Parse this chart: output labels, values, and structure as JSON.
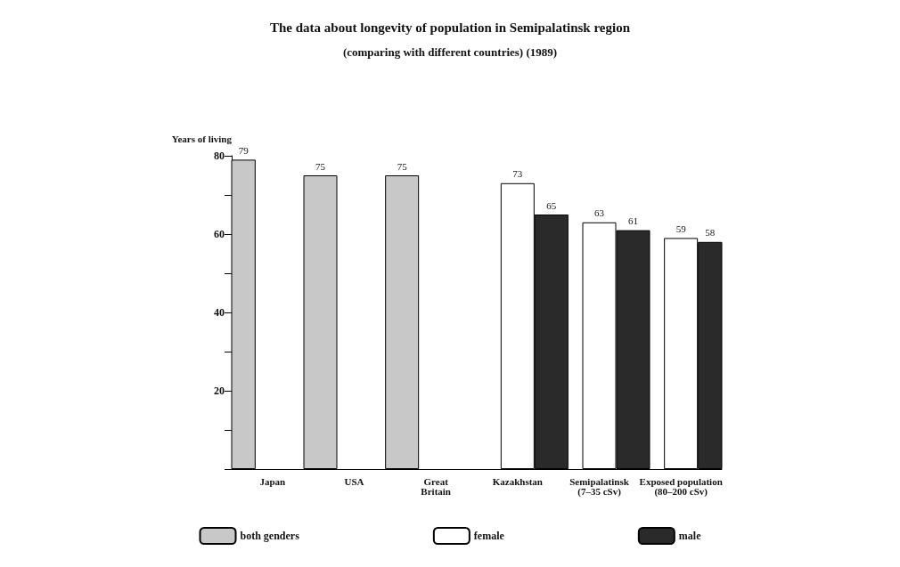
{
  "chart_data": {
    "type": "bar",
    "title": "The data about longevity of population in Semipalatinsk region",
    "subtitle": "(comparing with different countries) (1989)",
    "ylabel": "Years of living",
    "categories": [
      "Japan",
      "USA",
      "Great\nBritain",
      "Kazakhstan",
      "Semipalatinsk\n(7–35 cSv)",
      "Exposed population\n(80–200 cSv)"
    ],
    "series": [
      {
        "name": "both genders",
        "color": "#c8c8c8",
        "values": [
          79,
          75,
          75,
          null,
          null,
          null
        ]
      },
      {
        "name": "female",
        "color": "#ffffff",
        "values": [
          null,
          null,
          null,
          73,
          63,
          59
        ]
      },
      {
        "name": "male",
        "color": "#2a2a2a",
        "values": [
          null,
          null,
          null,
          65,
          61,
          58
        ]
      }
    ],
    "ylim": [
      0,
      80
    ],
    "yticks": [
      {
        "value": 0,
        "label": null
      },
      {
        "value": 10,
        "label": null
      },
      20,
      {
        "value": 30,
        "label": null
      },
      40,
      {
        "value": 50,
        "label": null
      },
      60,
      {
        "value": 70,
        "label": null
      },
      80
    ],
    "data_labels": true,
    "grid": false,
    "legend": "bottom"
  }
}
